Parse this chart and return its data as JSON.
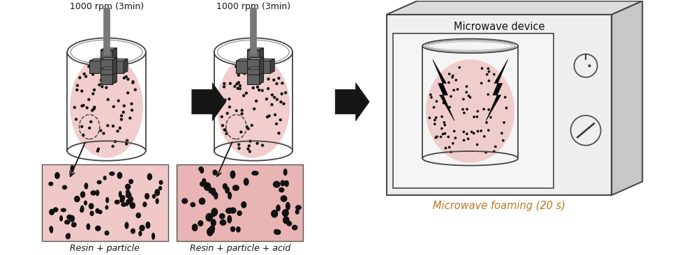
{
  "bg_color": "#ffffff",
  "pink_color": "#f0c8c8",
  "gray_shaft": "#808080",
  "gray_blade_top": "#686868",
  "gray_blade_side": "#404040",
  "dark_edge": "#303030",
  "mw_face": "#efefef",
  "mw_side": "#c8c8c8",
  "mw_top": "#dcdcdc",
  "mw_screen_bg": "#f5f5f5",
  "orange_text": "#b87820",
  "label1": "1000 rpm (3min)",
  "label2": "1000 rpm (3min)",
  "caption1": "Resin + particle",
  "caption2": "Resin + particle + acid",
  "caption3": "Microwave foaming (20 s)",
  "title_microwave": "Microwave device",
  "dot_color": "#111111"
}
